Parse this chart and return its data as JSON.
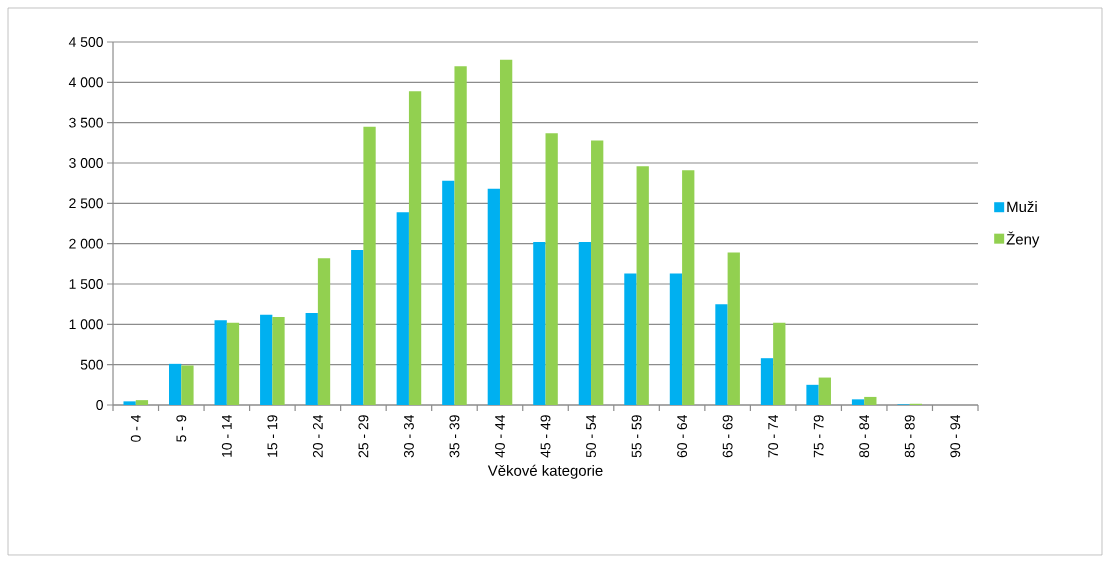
{
  "chart_data": {
    "type": "bar",
    "xlabel": "Věkové kategorie",
    "categories": [
      "0 - 4",
      "5 - 9",
      "10 - 14",
      "15 - 19",
      "20 - 24",
      "25 - 29",
      "30 - 34",
      "35 - 39",
      "40 - 44",
      "45 - 49",
      "50 - 54",
      "55 - 59",
      "60 - 64",
      "65 - 69",
      "70 - 74",
      "75 - 79",
      "80 - 84",
      "85 - 89",
      "90 - 94"
    ],
    "series": [
      {
        "name": "Muži",
        "color": "#00b0f0",
        "values": [
          45,
          510,
          1050,
          1120,
          1140,
          1920,
          2390,
          2780,
          2680,
          2020,
          2020,
          1630,
          1630,
          1250,
          580,
          250,
          70,
          8,
          0
        ]
      },
      {
        "name": "Ženy",
        "color": "#92d050",
        "values": [
          60,
          490,
          1020,
          1090,
          1820,
          3450,
          3890,
          4200,
          4280,
          3370,
          3280,
          2960,
          2910,
          1890,
          1020,
          340,
          100,
          15,
          0
        ]
      }
    ],
    "ylim": [
      0,
      4500
    ],
    "yticks": [
      0,
      500,
      {
        "value": 1000,
        "label": "1 000"
      },
      {
        "value": 1500,
        "label": "1 500"
      },
      {
        "value": 2000,
        "label": "2 000"
      },
      {
        "value": 2500,
        "label": "2 500"
      },
      {
        "value": 3000,
        "label": "3 000"
      },
      {
        "value": 3500,
        "label": "3 500"
      },
      {
        "value": 4000,
        "label": "4 000"
      },
      {
        "value": 4500,
        "label": "4 500"
      }
    ],
    "grid": "y",
    "legend": "right"
  }
}
